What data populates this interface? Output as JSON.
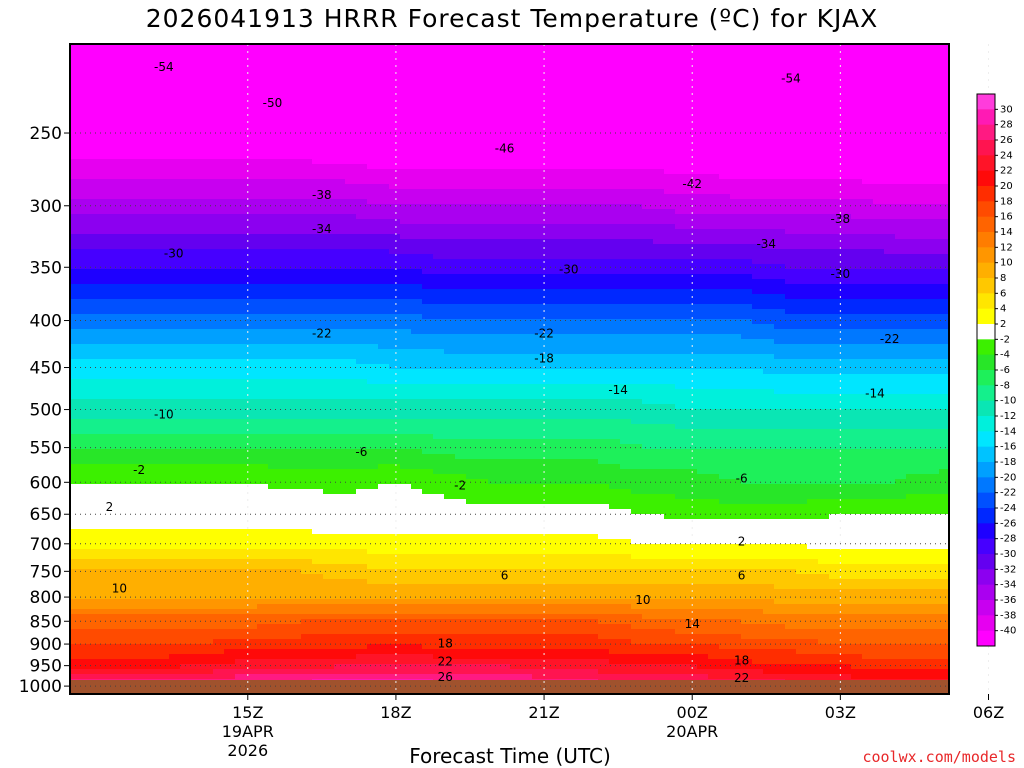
{
  "chart_data": {
    "type": "heatmap",
    "title": "2026041913 HRRR Forecast Temperature (ºC) for KJAX",
    "xlabel": "Forecast Time (UTC)",
    "ylabel": "",
    "x_range_hours": [
      -1.6,
      16.2
    ],
    "y_range_hpa": [
      1020,
      200
    ],
    "y_scale": "log-pressure",
    "x_ticks": [
      {
        "hour": 2,
        "line1": "15Z",
        "line2": "19APR",
        "line3": "2026"
      },
      {
        "hour": 5,
        "line1": "18Z",
        "line2": "",
        "line3": ""
      },
      {
        "hour": 8,
        "line1": "21Z",
        "line2": "",
        "line3": ""
      },
      {
        "hour": 11,
        "line1": "00Z",
        "line2": "20APR",
        "line3": ""
      },
      {
        "hour": 14,
        "line1": "03Z",
        "line2": "",
        "line3": ""
      },
      {
        "hour": 17,
        "line1": "06Z",
        "line2": "",
        "line3": ""
      }
    ],
    "y_ticks": [
      250,
      300,
      350,
      400,
      450,
      500,
      550,
      600,
      650,
      700,
      750,
      800,
      850,
      900,
      950,
      1000
    ],
    "colorbar": {
      "levels": [
        30,
        28,
        26,
        24,
        22,
        20,
        18,
        16,
        14,
        12,
        10,
        8,
        6,
        4,
        2,
        -2,
        -4,
        -6,
        -8,
        -10,
        -12,
        -14,
        -16,
        -18,
        -20,
        -22,
        -24,
        -26,
        -28,
        -30,
        -32,
        -34,
        -36,
        -38,
        -40
      ],
      "colors": [
        "#ff3cdc",
        "#ff1ab4",
        "#ff1a82",
        "#ff1450",
        "#ff1428",
        "#ff0a0a",
        "#ff2d00",
        "#ff4b00",
        "#ff6400",
        "#ff7d00",
        "#ff9600",
        "#ffaf00",
        "#ffc800",
        "#ffe600",
        "#ffff00",
        "#ffffff",
        "#3cf000",
        "#28e628",
        "#1ef05a",
        "#14f08c",
        "#0ae6b4",
        "#00f0dc",
        "#00e6ff",
        "#00c3ff",
        "#00a0ff",
        "#0078ff",
        "#0050ff",
        "#0028ff",
        "#1e00ff",
        "#4600ff",
        "#6400f0",
        "#8c00f0",
        "#aa00f0",
        "#c800f0",
        "#e600f0",
        "#ff00ff"
      ]
    },
    "profiles": [
      {
        "p": 1000,
        "t": [
          28,
          28,
          29,
          29,
          30,
          30,
          29,
          29,
          28,
          27,
          26,
          26,
          26,
          25,
          24,
          24,
          24,
          24
        ]
      },
      {
        "p": 950,
        "t": [
          21,
          22,
          23,
          23,
          24,
          24,
          24,
          24,
          23,
          23,
          22,
          22,
          21,
          20,
          20,
          19,
          19,
          19
        ]
      },
      {
        "p": 900,
        "t": [
          18,
          18,
          19,
          19,
          19,
          20,
          19,
          19,
          19,
          19,
          18,
          18,
          17,
          17,
          16,
          16,
          16,
          16
        ]
      },
      {
        "p": 850,
        "t": [
          15,
          15,
          15,
          16,
          16,
          16,
          16,
          16,
          16,
          16,
          15,
          14,
          14,
          13,
          13,
          13,
          13,
          13
        ]
      },
      {
        "p": 800,
        "t": [
          10,
          10,
          10,
          10,
          10,
          10,
          10,
          10,
          10,
          10,
          10,
          10,
          10,
          9,
          9,
          9,
          9,
          9
        ]
      },
      {
        "p": 750,
        "t": [
          9,
          9,
          9,
          8,
          7,
          6,
          6,
          6,
          6,
          6,
          6,
          6,
          6,
          6,
          5,
          5,
          5,
          5
        ]
      },
      {
        "p": 700,
        "t": [
          3,
          3,
          3,
          3,
          3,
          3,
          3,
          3,
          3,
          3,
          2,
          2,
          2,
          2,
          1,
          1,
          1,
          1
        ]
      },
      {
        "p": 650,
        "t": [
          1,
          1,
          1,
          1,
          0,
          0,
          -1,
          -1,
          -1,
          -1,
          -2,
          -3,
          -3,
          -3,
          -2,
          -2,
          -2,
          -2
        ]
      },
      {
        "p": 600,
        "t": [
          -2,
          -2,
          -2,
          -3,
          -3,
          -2,
          -3,
          -4,
          -4,
          -4,
          -5,
          -5,
          -6,
          -6,
          -6,
          -6,
          -5,
          -5
        ]
      },
      {
        "p": 550,
        "t": [
          -6,
          -6,
          -6,
          -6,
          -6,
          -6,
          -7,
          -7,
          -7,
          -7,
          -8,
          -8,
          -8,
          -8,
          -8,
          -8,
          -8,
          -8
        ]
      },
      {
        "p": 500,
        "t": [
          -11,
          -11,
          -11,
          -11,
          -11,
          -11,
          -11,
          -11,
          -11,
          -11,
          -11,
          -12,
          -12,
          -12,
          -12,
          -12,
          -12,
          -12
        ]
      },
      {
        "p": 450,
        "t": [
          -15,
          -15,
          -15,
          -15,
          -15,
          -16,
          -16,
          -16,
          -16,
          -16,
          -16,
          -16,
          -16,
          -17,
          -17,
          -17,
          -17,
          -17
        ]
      },
      {
        "p": 400,
        "t": [
          -21,
          -21,
          -21,
          -21,
          -21,
          -21,
          -22,
          -22,
          -22,
          -22,
          -22,
          -22,
          -22,
          -23,
          -23,
          -23,
          -23,
          -24
        ]
      },
      {
        "p": 350,
        "t": [
          -28,
          -28,
          -28,
          -28,
          -28,
          -28,
          -29,
          -29,
          -29,
          -29,
          -29,
          -29,
          -29,
          -30,
          -30,
          -30,
          -30,
          -31
        ]
      },
      {
        "p": 300,
        "t": [
          -35,
          -35,
          -35,
          -35,
          -35,
          -36,
          -36,
          -36,
          -36,
          -36,
          -36,
          -37,
          -37,
          -37,
          -37,
          -38,
          -38,
          -38
        ]
      },
      {
        "p": 250,
        "t": [
          -43,
          -43,
          -43,
          -43,
          -44,
          -44,
          -44,
          -44,
          -44,
          -44,
          -44,
          -44,
          -45,
          -45,
          -45,
          -45,
          -45,
          -45
        ]
      },
      {
        "p": 200,
        "t": [
          -54,
          -54,
          -54,
          -54,
          -54,
          -54,
          -54,
          -54,
          -54,
          -54,
          -55,
          -55,
          -55,
          -55,
          -55,
          -55,
          -55,
          -55
        ]
      }
    ],
    "contour_labels": [
      {
        "hour": 0.3,
        "p": 212,
        "text": "-54"
      },
      {
        "hour": 13.0,
        "p": 218,
        "text": "-54"
      },
      {
        "hour": 2.5,
        "p": 232,
        "text": "-50"
      },
      {
        "hour": 7.2,
        "p": 260,
        "text": "-46"
      },
      {
        "hour": 11.0,
        "p": 284,
        "text": "-42"
      },
      {
        "hour": 3.5,
        "p": 292,
        "text": "-38"
      },
      {
        "hour": 14.0,
        "p": 310,
        "text": "-38"
      },
      {
        "hour": 3.5,
        "p": 318,
        "text": "-34"
      },
      {
        "hour": 12.5,
        "p": 330,
        "text": "-34"
      },
      {
        "hour": 0.5,
        "p": 338,
        "text": "-30"
      },
      {
        "hour": 8.5,
        "p": 352,
        "text": "-30"
      },
      {
        "hour": 14.0,
        "p": 356,
        "text": "-30"
      },
      {
        "hour": 3.5,
        "p": 413,
        "text": "-22"
      },
      {
        "hour": 8.0,
        "p": 413,
        "text": "-22"
      },
      {
        "hour": 15.0,
        "p": 419,
        "text": "-22"
      },
      {
        "hour": 8.0,
        "p": 440,
        "text": "-18"
      },
      {
        "hour": 9.5,
        "p": 476,
        "text": "-14"
      },
      {
        "hour": 14.7,
        "p": 480,
        "text": "-14"
      },
      {
        "hour": 0.3,
        "p": 506,
        "text": "-10"
      },
      {
        "hour": 4.3,
        "p": 556,
        "text": "-6"
      },
      {
        "hour": 12.0,
        "p": 594,
        "text": "-6"
      },
      {
        "hour": -0.2,
        "p": 582,
        "text": "-2"
      },
      {
        "hour": 6.3,
        "p": 605,
        "text": "-2"
      },
      {
        "hour": -0.8,
        "p": 638,
        "text": "2"
      },
      {
        "hour": 12.0,
        "p": 696,
        "text": "2"
      },
      {
        "hour": 7.2,
        "p": 758,
        "text": "6"
      },
      {
        "hour": 12.0,
        "p": 758,
        "text": "6"
      },
      {
        "hour": -0.6,
        "p": 783,
        "text": "10"
      },
      {
        "hour": 10.0,
        "p": 806,
        "text": "10"
      },
      {
        "hour": 11.0,
        "p": 856,
        "text": "14"
      },
      {
        "hour": 6.0,
        "p": 899,
        "text": "18"
      },
      {
        "hour": 12.0,
        "p": 938,
        "text": "18"
      },
      {
        "hour": 6.0,
        "p": 940,
        "text": "22"
      },
      {
        "hour": 12.0,
        "p": 980,
        "text": "22"
      },
      {
        "hour": 6.0,
        "p": 977,
        "text": "26"
      }
    ]
  },
  "watermark": "coolwx.com/models"
}
